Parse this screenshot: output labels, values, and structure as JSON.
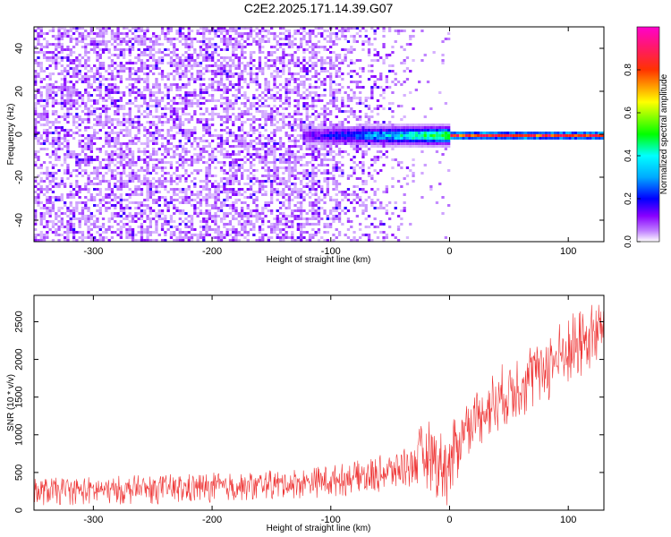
{
  "title": "C2E2.2025.171.14.39.G07",
  "colors": {
    "snr_line": "#ee3333",
    "cbar_stops": [
      "#ffffff",
      "#8800ff",
      "#0000ff",
      "#00ffff",
      "#00ff00",
      "#ffff00",
      "#ff0000",
      "#ff00aa"
    ]
  },
  "chart_data": [
    {
      "type": "heatmap",
      "xlabel": "Height of straight line (km)",
      "ylabel": "Frequency (Hz)",
      "xlim": [
        -350,
        130
      ],
      "ylim": [
        -50,
        50
      ],
      "xticks": [
        -300,
        -200,
        -100,
        0,
        100
      ],
      "yticks": [
        -40,
        -20,
        0,
        20,
        40
      ],
      "colorbar": {
        "label": "Normalized spectral amplitude",
        "ticks": [
          0.0,
          0.2,
          0.4,
          0.6,
          0.8
        ],
        "range": [
          0,
          1
        ]
      },
      "features": {
        "noise_region_x": [
          -350,
          -30
        ],
        "signal_onset_x": -125,
        "signal_frequency_hz": 0,
        "strong_signal_from_x": 0
      }
    },
    {
      "type": "line",
      "xlabel": "Height of straight line (km)",
      "ylabel": "SNR (10 * v/v)",
      "xlim": [
        -350,
        130
      ],
      "ylim": [
        0,
        2850
      ],
      "xticks": [
        -300,
        -200,
        -100,
        0,
        100
      ],
      "yticks": [
        0,
        500,
        1000,
        1500,
        2000,
        2500
      ],
      "series": [
        {
          "x": [
            -350,
            -300,
            -250,
            -200,
            -150,
            -100,
            -80,
            -60,
            -40,
            -30,
            -20,
            -10,
            0,
            10,
            20,
            40,
            60,
            80,
            100,
            120,
            130
          ],
          "y_low": [
            60,
            70,
            80,
            100,
            130,
            170,
            200,
            230,
            280,
            300,
            300,
            150,
            0,
            600,
            800,
            1000,
            1200,
            1400,
            1600,
            1850,
            2000
          ],
          "y_high": [
            420,
            450,
            470,
            500,
            530,
            600,
            650,
            720,
            850,
            950,
            1250,
            1050,
            1100,
            1400,
            1600,
            1900,
            2150,
            2350,
            2600,
            2750,
            2820
          ]
        }
      ]
    }
  ]
}
